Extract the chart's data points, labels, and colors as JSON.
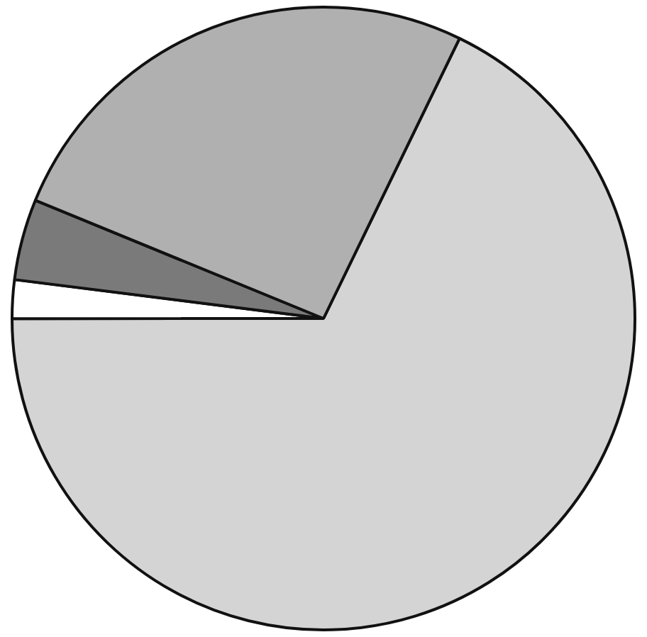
{
  "chart_data": {
    "type": "pie",
    "categories": [
      null,
      null,
      null,
      null
    ],
    "values": [
      67.8,
      2.0,
      4.2,
      26.0
    ],
    "colors": [
      "#d4d4d4",
      "#ffffff",
      "#7a7a7a",
      "#b0b0b0"
    ],
    "legend": false
  }
}
